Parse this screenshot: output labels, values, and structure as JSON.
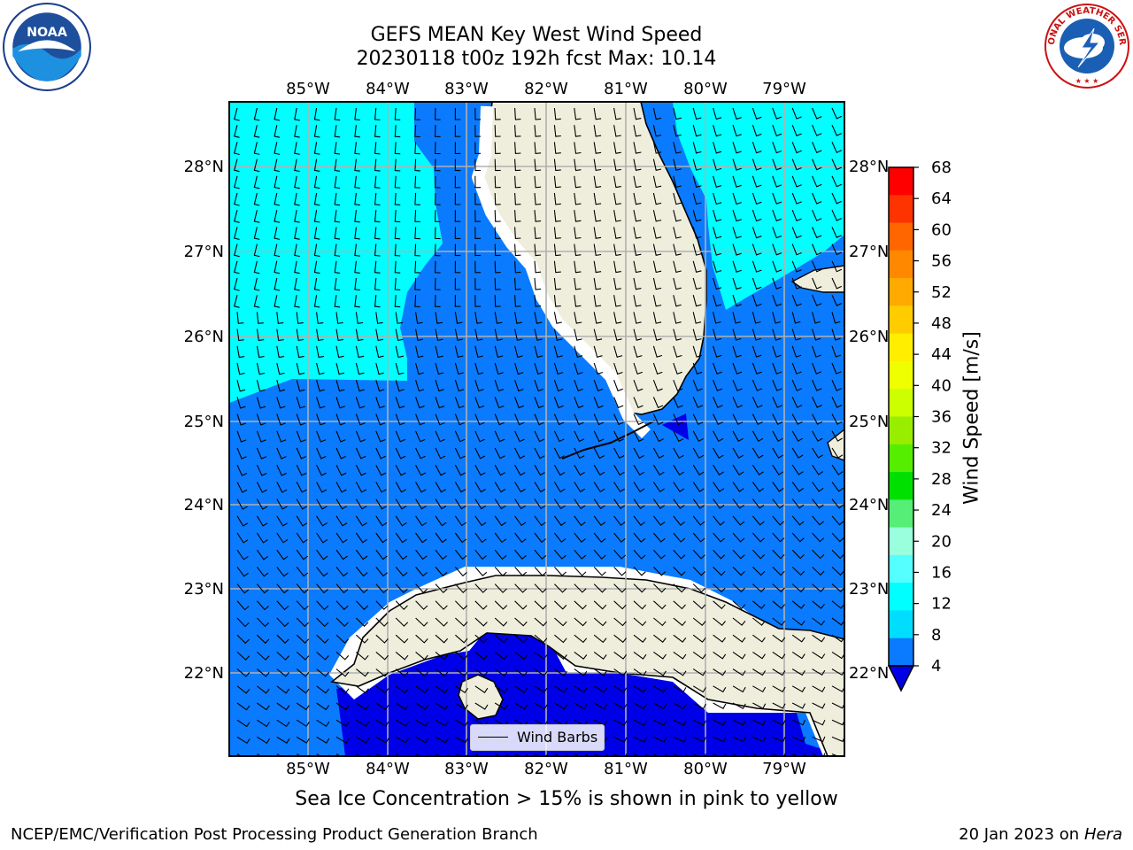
{
  "title": {
    "line1": "GEFS MEAN Key West Wind Speed",
    "line2": "20230118 t00z 192h fcst   Max: 10.14"
  },
  "logos": {
    "left": "noaa-logo",
    "right": "nws-logo",
    "right_text": "NATIONAL WEATHER SERVICE"
  },
  "map": {
    "lon_labels": [
      "85°W",
      "84°W",
      "83°W",
      "82°W",
      "81°W",
      "80°W",
      "79°W"
    ],
    "lat_labels": [
      "28°N",
      "27°N",
      "26°N",
      "25°N",
      "24°N",
      "23°N",
      "22°N"
    ],
    "legend": "Wind Barbs",
    "colors": {
      "land": "#efeedd",
      "gridline": "#b0b0b0",
      "speed_4_8": "#0a7bff",
      "speed_8_12": "#00ffff",
      "speed_below_4": "#0000e8"
    }
  },
  "colorbar": {
    "label": "Wind Speed [m/s]",
    "ticks": [
      "68",
      "64",
      "60",
      "56",
      "52",
      "48",
      "44",
      "40",
      "36",
      "32",
      "28",
      "24",
      "20",
      "16",
      "12",
      "8",
      "4"
    ],
    "colors": [
      "#ff0000",
      "#ff3300",
      "#ff6600",
      "#ff8800",
      "#ffaa00",
      "#ffcc00",
      "#ffee00",
      "#f0ff00",
      "#ccff00",
      "#99ee00",
      "#55ee00",
      "#00e000",
      "#55ee77",
      "#99ffdd",
      "#55ffff",
      "#00ffff",
      "#00ddff",
      "#0a7bff"
    ],
    "extend_color": "#0000e8"
  },
  "caption": "Sea Ice Concentration > 15% is shown in pink to yellow",
  "credit": "NCEP/EMC/Verification Post Processing Product Generation Branch",
  "run_date": {
    "date": "20 Jan 2023 on",
    "machine": "Hera"
  }
}
